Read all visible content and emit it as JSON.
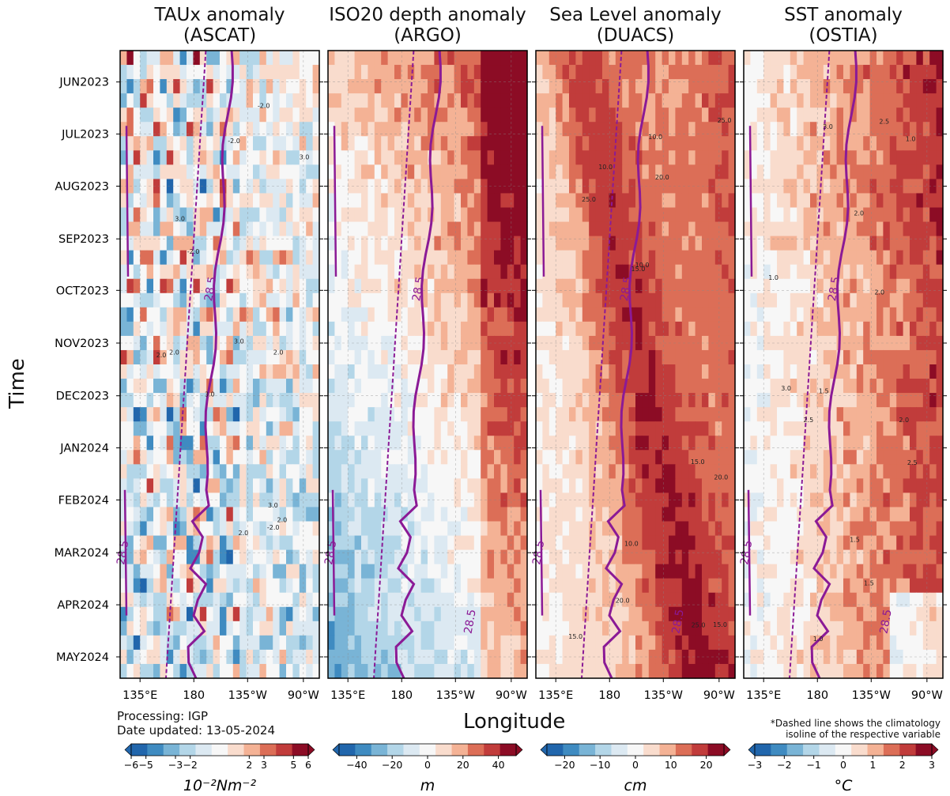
{
  "figure": {
    "y_axis_label": "Time",
    "x_axis_label": "Longitude",
    "processing_note": "Processing: IGP",
    "date_note": "Date updated: 13-05-2024",
    "dashed_note_line1": "*Dashed line shows the climatology",
    "dashed_note_line2": "isoline of the respective variable"
  },
  "chart_data": [
    {
      "type": "heatmap",
      "title_line1": "TAUx anomaly",
      "title_line2": "(ASCAT)",
      "xlabel": "Longitude",
      "ylabel": "Time",
      "x_ticks": [
        "135°E",
        "180",
        "135°W",
        "90°W"
      ],
      "y_ticks": [
        "JUN2023",
        "JUL2023",
        "AUG2023",
        "SEP2023",
        "OCT2023",
        "NOV2023",
        "DEC2023",
        "JAN2024",
        "FEB2024",
        "MAR2024",
        "APR2024",
        "MAY2024"
      ],
      "colorbar_ticks": [
        "−6",
        "−5",
        "−3",
        "−2",
        "2",
        "3",
        "5",
        "6"
      ],
      "colorbar_unit": "10⁻²Nm⁻²",
      "colorbar_range": [
        -6,
        6
      ],
      "contour_labels": [
        "28.5",
        "28.5"
      ],
      "contour_value_labels": [
        "2.0",
        "3.0",
        "-2.0"
      ]
    },
    {
      "type": "heatmap",
      "title_line1": "ISO20 depth anomaly",
      "title_line2": "(ARGO)",
      "xlabel": "Longitude",
      "ylabel": "Time",
      "x_ticks": [
        "135°E",
        "180",
        "135°W",
        "90°W"
      ],
      "y_ticks": [
        "JUN2023",
        "JUL2023",
        "AUG2023",
        "SEP2023",
        "OCT2023",
        "NOV2023",
        "DEC2023",
        "JAN2024",
        "FEB2024",
        "MAR2024",
        "APR2024",
        "MAY2024"
      ],
      "colorbar_ticks": [
        "−40",
        "−20",
        "0",
        "20",
        "40"
      ],
      "colorbar_unit": "m",
      "colorbar_range": [
        -50,
        50
      ],
      "contour_labels": [
        "28.5",
        "28.5",
        "28.5"
      ]
    },
    {
      "type": "heatmap",
      "title_line1": "Sea Level anomaly",
      "title_line2": "(DUACS)",
      "xlabel": "Longitude",
      "ylabel": "Time",
      "x_ticks": [
        "135°E",
        "180",
        "135°W",
        "90°W"
      ],
      "y_ticks": [
        "JUN2023",
        "JUL2023",
        "AUG2023",
        "SEP2023",
        "OCT2023",
        "NOV2023",
        "DEC2023",
        "JAN2024",
        "FEB2024",
        "MAR2024",
        "APR2024",
        "MAY2024"
      ],
      "colorbar_ticks": [
        "−20",
        "−10",
        "0",
        "10",
        "20"
      ],
      "colorbar_unit": "cm",
      "colorbar_range": [
        -25,
        25
      ],
      "contour_labels": [
        "28.5",
        "28.5",
        "28.5"
      ],
      "contour_value_labels": [
        "10.0",
        "15.0",
        "20.0",
        "25.0"
      ]
    },
    {
      "type": "heatmap",
      "title_line1": "SST anomaly",
      "title_line2": "(OSTIA)",
      "xlabel": "Longitude",
      "ylabel": "Time",
      "x_ticks": [
        "135°E",
        "180",
        "135°W",
        "90°W"
      ],
      "y_ticks": [
        "JUN2023",
        "JUL2023",
        "AUG2023",
        "SEP2023",
        "OCT2023",
        "NOV2023",
        "DEC2023",
        "JAN2024",
        "FEB2024",
        "MAR2024",
        "APR2024",
        "MAY2024"
      ],
      "colorbar_ticks": [
        "−3",
        "−2",
        "−1",
        "0",
        "1",
        "2",
        "3"
      ],
      "colorbar_unit": "°C",
      "colorbar_range": [
        -3,
        3
      ],
      "contour_labels": [
        "28.5",
        "28.5",
        "28.5"
      ],
      "contour_value_labels": [
        "1.0",
        "1.5",
        "2.0",
        "2.5",
        "3.0"
      ]
    }
  ],
  "colors": {
    "contour_purple": "#8b1a96",
    "colormap": [
      "#2166ac",
      "#3f8bc1",
      "#79b4d6",
      "#b3d6e8",
      "#dce9f2",
      "#f7f7f7",
      "#f9dccd",
      "#f4b295",
      "#dc6e57",
      "#c13c3b",
      "#8c0c25"
    ]
  }
}
